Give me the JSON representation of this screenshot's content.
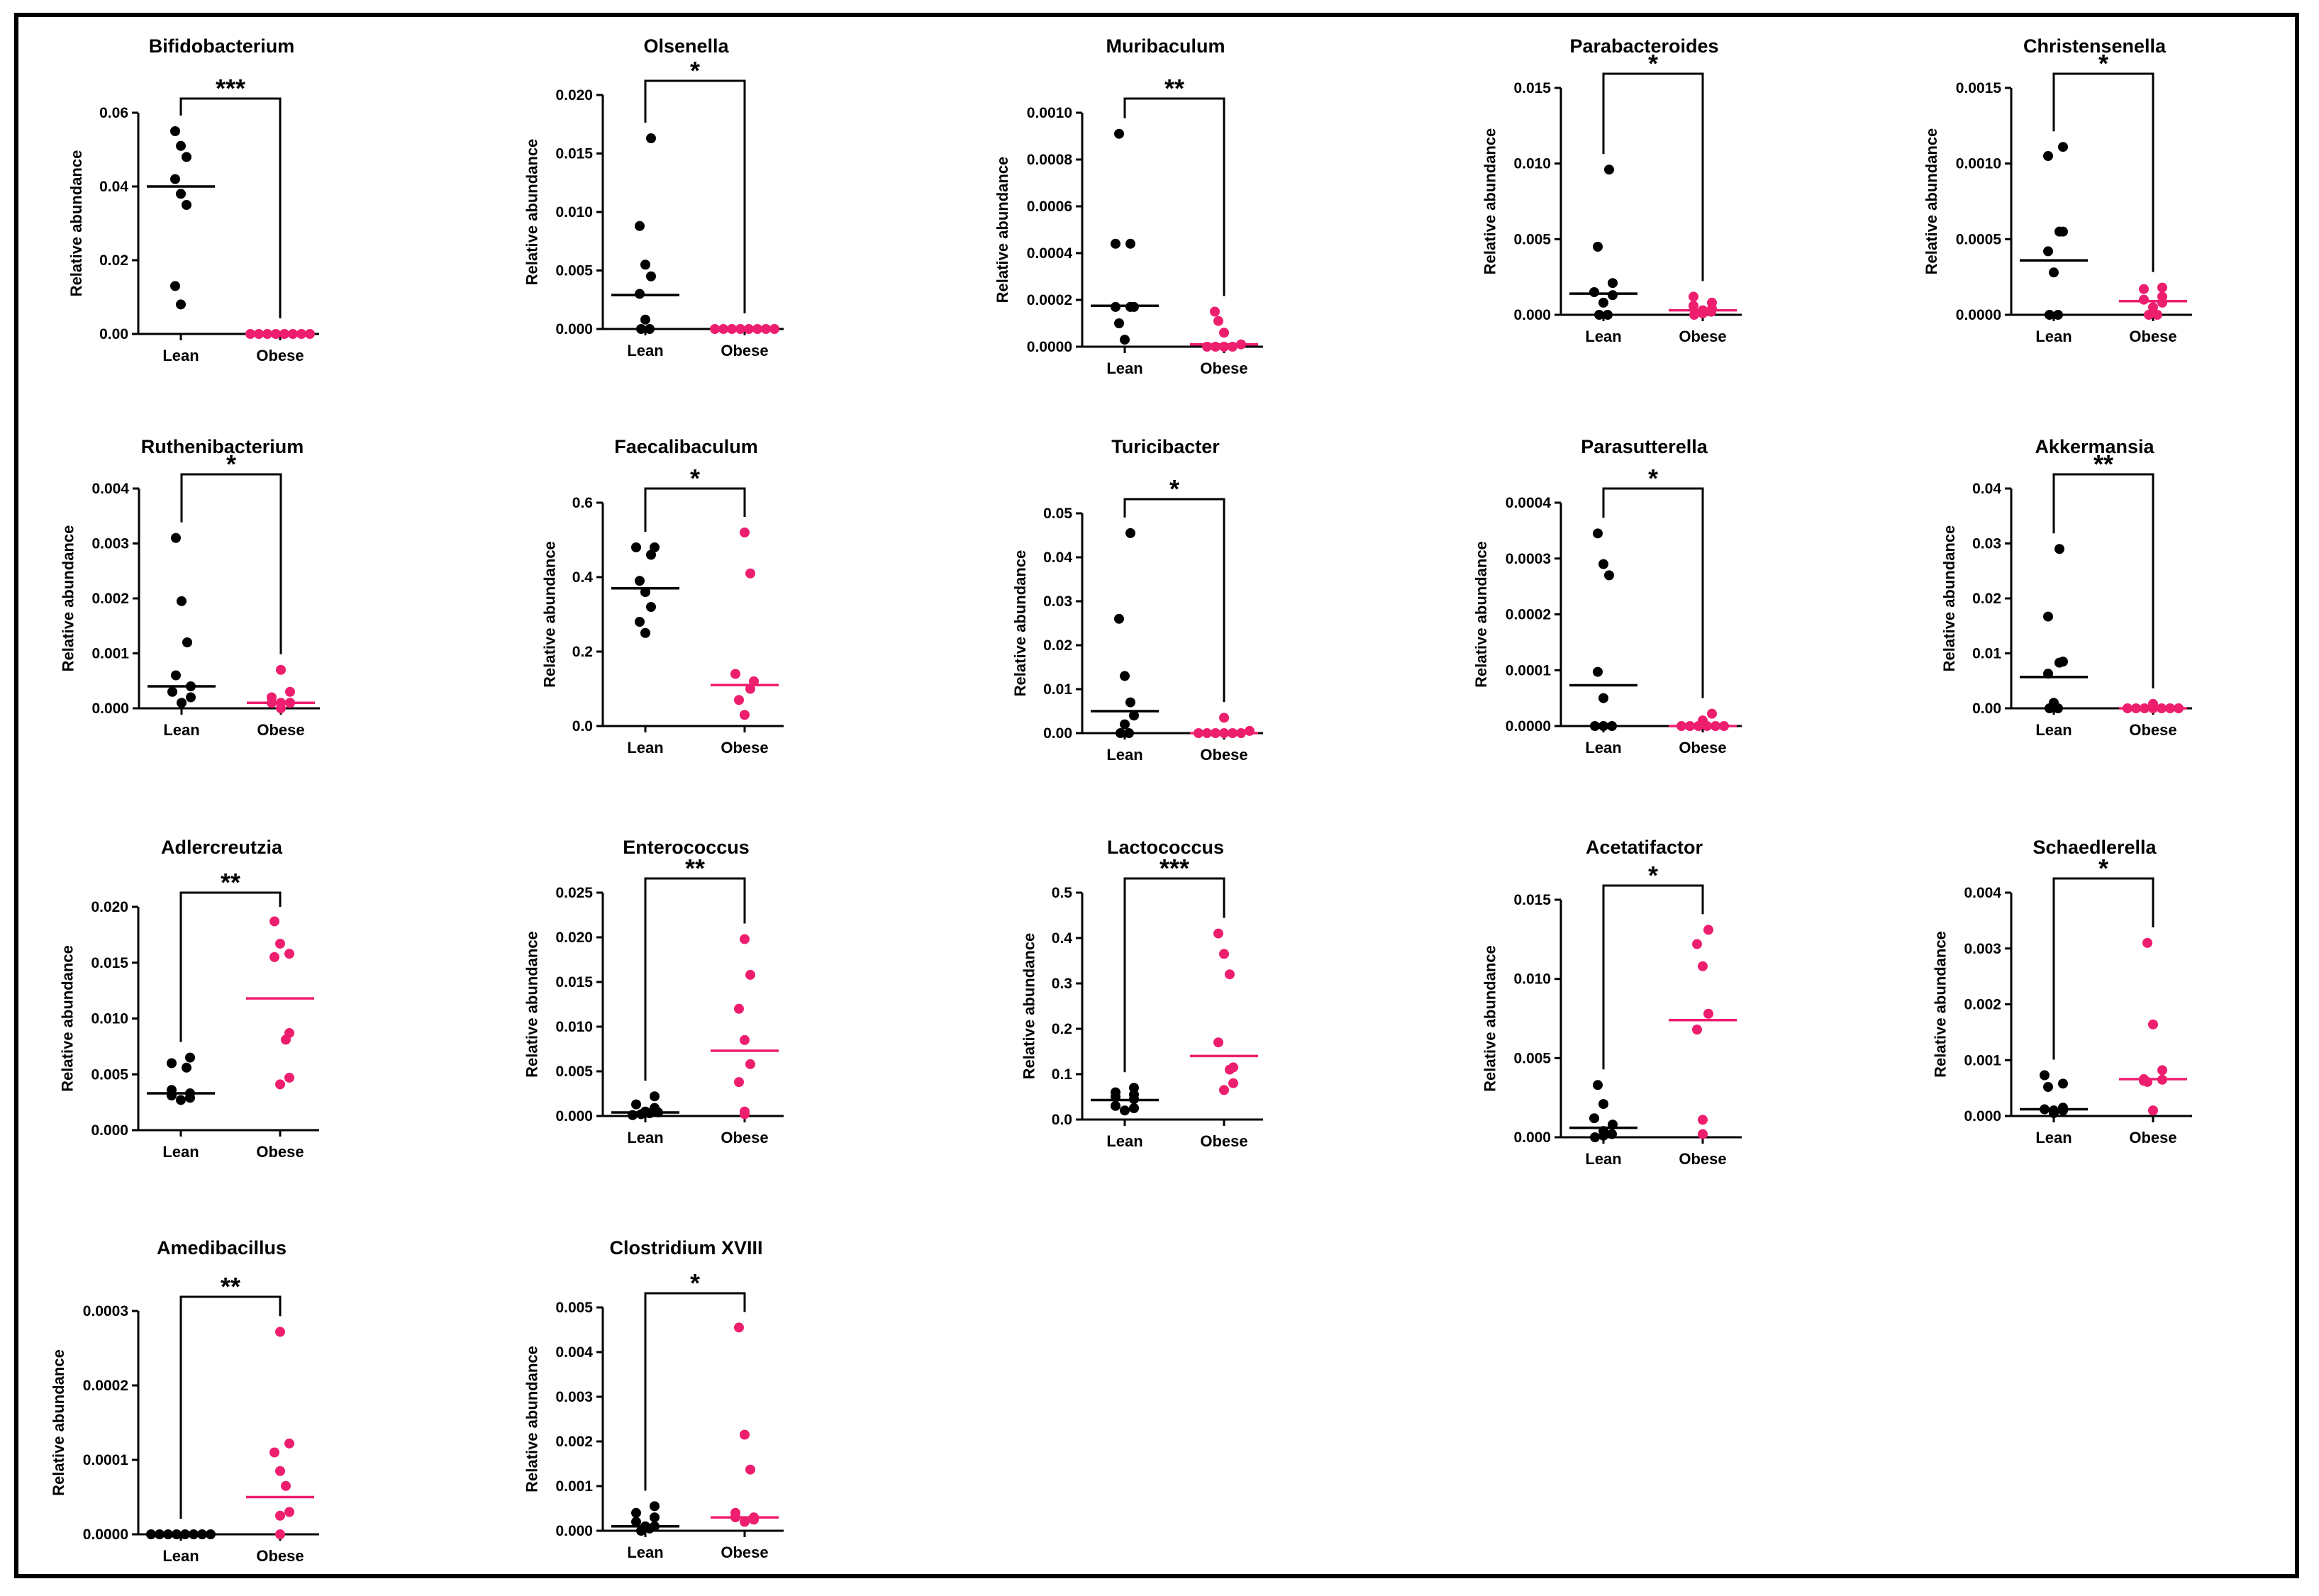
{
  "figure": {
    "ylabel": "Relative abundance",
    "colors": {
      "lean": "#000000",
      "obese": "#ee1e6e",
      "axis": "#000000"
    }
  },
  "chart_data": [
    {
      "type": "scatter",
      "title": "Bifidobacterium",
      "categories": [
        "Lean",
        "Obese"
      ],
      "ylabel": "Relative abundance",
      "yticks": [
        "0.00",
        "0.02",
        "0.04",
        "0.06"
      ],
      "ylim": [
        0,
        0.06
      ],
      "significance": "***",
      "series": [
        {
          "name": "Lean",
          "values": [
            0.008,
            0.013,
            0.035,
            0.038,
            0.042,
            0.048,
            0.051,
            0.055
          ],
          "median": 0.04
        },
        {
          "name": "Obese",
          "values": [
            0,
            0,
            0,
            0,
            0,
            0,
            0,
            0
          ],
          "median": 0
        }
      ]
    },
    {
      "type": "scatter",
      "title": "Olsenella",
      "categories": [
        "Lean",
        "Obese"
      ],
      "ylabel": "Relative abundance",
      "yticks": [
        "0.000",
        "0.005",
        "0.010",
        "0.015",
        "0.020"
      ],
      "ylim": [
        0,
        0.02
      ],
      "significance": "*",
      "series": [
        {
          "name": "Lean",
          "values": [
            0,
            0,
            0.0008,
            0.003,
            0.0045,
            0.0055,
            0.0088,
            0.0163
          ],
          "median": 0.0029
        },
        {
          "name": "Obese",
          "values": [
            0,
            0,
            0,
            0,
            0,
            0,
            0,
            0
          ],
          "median": 0
        }
      ]
    },
    {
      "type": "scatter",
      "title": "Muribaculum",
      "categories": [
        "Lean",
        "Obese"
      ],
      "ylabel": "Relative abundance",
      "yticks": [
        "0.0000",
        "0.0002",
        "0.0004",
        "0.0006",
        "0.0008",
        "0.0010"
      ],
      "ylim": [
        0,
        0.001
      ],
      "significance": "**",
      "series": [
        {
          "name": "Lean",
          "values": [
            3e-05,
            0.0001,
            0.00017,
            0.00017,
            0.00017,
            0.00044,
            0.00044,
            0.00091
          ],
          "median": 0.000175
        },
        {
          "name": "Obese",
          "values": [
            0,
            0,
            0,
            0,
            1e-05,
            6e-05,
            0.00011,
            0.00015
          ],
          "median": 1e-05
        }
      ]
    },
    {
      "type": "scatter",
      "title": "Parabacteroides",
      "categories": [
        "Lean",
        "Obese"
      ],
      "ylabel": "Relative abundance",
      "yticks": [
        "0.000",
        "0.005",
        "0.010",
        "0.015"
      ],
      "ylim": [
        0,
        0.015
      ],
      "significance": "*",
      "series": [
        {
          "name": "Lean",
          "values": [
            0,
            0,
            0.0008,
            0.0013,
            0.0015,
            0.0021,
            0.0045,
            0.0096
          ],
          "median": 0.0014
        },
        {
          "name": "Obese",
          "values": [
            0,
            0.0001,
            0.0002,
            0.0003,
            0.0004,
            0.0006,
            0.0008,
            0.0012
          ],
          "median": 0.0003
        }
      ]
    },
    {
      "type": "scatter",
      "title": "Christensenella",
      "categories": [
        "Lean",
        "Obese"
      ],
      "ylabel": "Relative abundance",
      "yticks": [
        "0.0000",
        "0.0005",
        "0.0010",
        "0.0015"
      ],
      "ylim": [
        0,
        0.0015
      ],
      "significance": "*",
      "series": [
        {
          "name": "Lean",
          "values": [
            0,
            0,
            0.00028,
            0.00042,
            0.00055,
            0.00055,
            0.00105,
            0.00111
          ],
          "median": 0.00036
        },
        {
          "name": "Obese",
          "values": [
            0,
            0,
            5e-05,
            8e-05,
            0.0001,
            0.00012,
            0.00017,
            0.00018
          ],
          "median": 9e-05
        }
      ]
    },
    {
      "type": "scatter",
      "title": "Ruthenibacterium",
      "categories": [
        "Lean",
        "Obese"
      ],
      "ylabel": "Relative abundance",
      "yticks": [
        "0.000",
        "0.001",
        "0.002",
        "0.003",
        "0.004"
      ],
      "ylim": [
        0,
        0.004
      ],
      "significance": "*",
      "series": [
        {
          "name": "Lean",
          "values": [
            0.0001,
            0.0002,
            0.0003,
            0.0004,
            0.0006,
            0.0012,
            0.00195,
            0.0031
          ],
          "median": 0.0004
        },
        {
          "name": "Obese",
          "values": [
            0,
            0.0001,
            0.0001,
            0.0001,
            0.0001,
            0.0002,
            0.0003,
            0.0007
          ],
          "median": 0.0001
        }
      ]
    },
    {
      "type": "scatter",
      "title": "Faecalibaculum",
      "categories": [
        "Lean",
        "Obese"
      ],
      "ylabel": "Relative abundance",
      "yticks": [
        "0.0",
        "0.2",
        "0.4",
        "0.6"
      ],
      "ylim": [
        0,
        0.6
      ],
      "significance": "*",
      "series": [
        {
          "name": "Lean",
          "values": [
            0.25,
            0.28,
            0.32,
            0.36,
            0.39,
            0.46,
            0.48,
            0.48
          ],
          "median": 0.37
        },
        {
          "name": "Obese",
          "values": [
            0.03,
            0.07,
            0.1,
            0.12,
            0.14,
            0.41,
            0.52
          ],
          "median": 0.11
        }
      ]
    },
    {
      "type": "scatter",
      "title": "Turicibacter",
      "categories": [
        "Lean",
        "Obese"
      ],
      "ylabel": "Relative abundance",
      "yticks": [
        "0.00",
        "0.01",
        "0.02",
        "0.03",
        "0.04",
        "0.05"
      ],
      "ylim": [
        0,
        0.05
      ],
      "significance": "*",
      "series": [
        {
          "name": "Lean",
          "values": [
            0,
            0,
            0.002,
            0.004,
            0.007,
            0.013,
            0.026,
            0.0455
          ],
          "median": 0.005
        },
        {
          "name": "Obese",
          "values": [
            0,
            0,
            0,
            0,
            0,
            0,
            0.0005,
            0.0035
          ],
          "median": 0
        }
      ]
    },
    {
      "type": "scatter",
      "title": "Parasutterella",
      "categories": [
        "Lean",
        "Obese"
      ],
      "ylabel": "Relative abundance",
      "yticks": [
        "0.0000",
        "0.0001",
        "0.0002",
        "0.0003",
        "0.0004"
      ],
      "ylim": [
        0,
        0.0004
      ],
      "significance": "*",
      "series": [
        {
          "name": "Lean",
          "values": [
            0,
            0,
            0,
            5e-05,
            9.7e-05,
            0.00027,
            0.00029,
            0.000345
          ],
          "median": 7.3e-05
        },
        {
          "name": "Obese",
          "values": [
            0,
            0,
            0,
            0,
            0,
            0,
            1e-05,
            2.2e-05
          ],
          "median": 0
        }
      ]
    },
    {
      "type": "scatter",
      "title": "Akkermansia",
      "categories": [
        "Lean",
        "Obese"
      ],
      "ylabel": "Relative abundance",
      "yticks": [
        "0.00",
        "0.01",
        "0.02",
        "0.03",
        "0.04"
      ],
      "ylim": [
        0,
        0.04
      ],
      "significance": "**",
      "series": [
        {
          "name": "Lean",
          "values": [
            0,
            0,
            0.001,
            0.0063,
            0.0083,
            0.0085,
            0.0167,
            0.029
          ],
          "median": 0.0057
        },
        {
          "name": "Obese",
          "values": [
            0,
            0,
            0,
            0,
            0,
            0,
            0,
            0.0008
          ],
          "median": 0
        }
      ]
    },
    {
      "type": "scatter",
      "title": "Adlercreutzia",
      "categories": [
        "Lean",
        "Obese"
      ],
      "ylabel": "Relative abundance",
      "yticks": [
        "0.000",
        "0.005",
        "0.010",
        "0.015",
        "0.020"
      ],
      "ylim": [
        0,
        0.02
      ],
      "significance": "**",
      "series": [
        {
          "name": "Lean",
          "values": [
            0.0027,
            0.0029,
            0.0031,
            0.0033,
            0.0036,
            0.0056,
            0.006,
            0.0065
          ],
          "median": 0.0033
        },
        {
          "name": "Obese",
          "values": [
            0.0041,
            0.0047,
            0.0081,
            0.0087,
            0.0155,
            0.0158,
            0.0167,
            0.0187
          ],
          "median": 0.0118
        }
      ]
    },
    {
      "type": "scatter",
      "title": "Enterococcus",
      "categories": [
        "Lean",
        "Obese"
      ],
      "ylabel": "Relative abundance",
      "yticks": [
        "0.000",
        "0.005",
        "0.010",
        "0.015",
        "0.020",
        "0.025"
      ],
      "ylim": [
        0,
        0.025
      ],
      "significance": "**",
      "series": [
        {
          "name": "Lean",
          "values": [
            0.0001,
            0.0002,
            0.0003,
            0.0004,
            0.0005,
            0.0009,
            0.0013,
            0.0022
          ],
          "median": 0.0004
        },
        {
          "name": "Obese",
          "values": [
            0.0002,
            0.0005,
            0.0038,
            0.0058,
            0.0085,
            0.012,
            0.0158,
            0.0198
          ],
          "median": 0.0073
        }
      ]
    },
    {
      "type": "scatter",
      "title": "Lactococcus",
      "categories": [
        "Lean",
        "Obese"
      ],
      "ylabel": "Relative abundance",
      "yticks": [
        "0.0",
        "0.1",
        "0.2",
        "0.3",
        "0.4",
        "0.5"
      ],
      "ylim": [
        0,
        0.5
      ],
      "significance": "***",
      "series": [
        {
          "name": "Lean",
          "values": [
            0.02,
            0.025,
            0.03,
            0.045,
            0.05,
            0.055,
            0.06,
            0.07
          ],
          "median": 0.043
        },
        {
          "name": "Obese",
          "values": [
            0.065,
            0.08,
            0.11,
            0.115,
            0.17,
            0.32,
            0.365,
            0.41
          ],
          "median": 0.14
        }
      ]
    },
    {
      "type": "scatter",
      "title": "Acetatifactor",
      "categories": [
        "Lean",
        "Obese"
      ],
      "ylabel": "Relative abundance",
      "yticks": [
        "0.000",
        "0.005",
        "0.010",
        "0.015"
      ],
      "ylim": [
        0,
        0.015
      ],
      "significance": "*",
      "series": [
        {
          "name": "Lean",
          "values": [
            0,
            0.0001,
            0.0002,
            0.0004,
            0.0008,
            0.0012,
            0.0021,
            0.0033
          ],
          "median": 0.0006
        },
        {
          "name": "Obese",
          "values": [
            0.0002,
            0.0011,
            0.0068,
            0.0078,
            0.0108,
            0.0122,
            0.0131
          ],
          "median": 0.0074
        }
      ]
    },
    {
      "type": "scatter",
      "title": "Schaedlerella",
      "categories": [
        "Lean",
        "Obese"
      ],
      "ylabel": "Relative abundance",
      "yticks": [
        "0.000",
        "0.001",
        "0.002",
        "0.003",
        "0.004"
      ],
      "ylim": [
        0,
        0.004
      ],
      "significance": "*",
      "series": [
        {
          "name": "Lean",
          "values": [
            5e-05,
            0.0001,
            0.0001,
            0.00012,
            0.00015,
            0.00052,
            0.00058,
            0.00073
          ],
          "median": 0.00012
        },
        {
          "name": "Obese",
          "values": [
            0.0001,
            0.00061,
            0.00063,
            0.00065,
            0.00066,
            0.00082,
            0.00164,
            0.0031
          ],
          "median": 0.00066
        }
      ]
    },
    {
      "type": "scatter",
      "title": "Amedibacillus",
      "categories": [
        "Lean",
        "Obese"
      ],
      "ylabel": "Relative abundance",
      "yticks": [
        "0.0000",
        "0.0001",
        "0.0002",
        "0.0003"
      ],
      "ylim": [
        0,
        0.0003
      ],
      "significance": "**",
      "series": [
        {
          "name": "Lean",
          "values": [
            0,
            0,
            0,
            0,
            0,
            0,
            0,
            0
          ],
          "median": 0
        },
        {
          "name": "Obese",
          "values": [
            0,
            2.5e-05,
            3e-05,
            6.5e-05,
            8.5e-05,
            0.00011,
            0.000122,
            0.000272
          ],
          "median": 5e-05
        }
      ]
    },
    {
      "type": "scatter",
      "title": "Clostridium XVIII",
      "categories": [
        "Lean",
        "Obese"
      ],
      "ylabel": "Relative abundance",
      "yticks": [
        "0.000",
        "0.001",
        "0.002",
        "0.003",
        "0.004",
        "0.005"
      ],
      "ylim": [
        0,
        0.005
      ],
      "significance": "*",
      "series": [
        {
          "name": "Lean",
          "values": [
            0,
            5e-05,
            0.0001,
            0.0001,
            0.0002,
            0.0003,
            0.0004,
            0.00055
          ],
          "median": 0.0001
        },
        {
          "name": "Obese",
          "values": [
            0.0002,
            0.00025,
            0.0003,
            0.0003,
            0.0004,
            0.00137,
            0.00215,
            0.00455
          ],
          "median": 0.0003
        }
      ]
    }
  ]
}
